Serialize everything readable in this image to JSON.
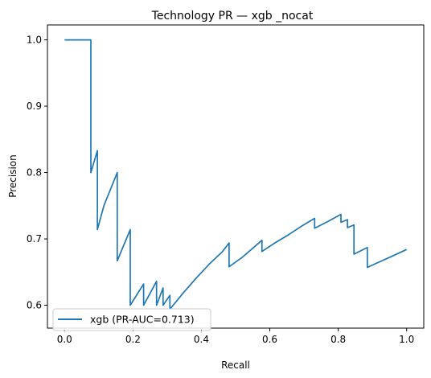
{
  "chart_data": {
    "type": "line",
    "title": "Technology PR — xgb _nocat",
    "xlabel": "Recall",
    "ylabel": "Precision",
    "xlim": [
      -0.05,
      1.05
    ],
    "ylim": [
      0.5655,
      1.0225
    ],
    "xticks": [
      0.0,
      0.2,
      0.4,
      0.6,
      0.8,
      1.0
    ],
    "xtick_labels": [
      "0.0",
      "0.2",
      "0.4",
      "0.6",
      "0.8",
      "1.0"
    ],
    "yticks": [
      0.6,
      0.7,
      0.8,
      0.9,
      1.0
    ],
    "ytick_labels": [
      "0.6",
      "0.7",
      "0.8",
      "0.9",
      "1.0"
    ],
    "grid": false,
    "legend_position": "lower-left",
    "series": [
      {
        "name": "xgb (PR-AUC=0.713)",
        "color": "#1f77b4",
        "x": [
          0.0,
          0.077,
          0.077,
          0.077,
          0.096,
          0.096,
          0.115,
          0.154,
          0.154,
          0.192,
          0.192,
          0.231,
          0.231,
          0.269,
          0.269,
          0.288,
          0.288,
          0.308,
          0.308,
          0.308,
          0.346,
          0.385,
          0.423,
          0.462,
          0.481,
          0.481,
          0.519,
          0.577,
          0.577,
          0.615,
          0.654,
          0.692,
          0.731,
          0.731,
          0.769,
          0.808,
          0.808,
          0.827,
          0.827,
          0.846,
          0.846,
          0.885,
          0.885,
          0.923,
          0.962,
          1.0
        ],
        "y": [
          1.0,
          1.0,
          0.8,
          0.8,
          0.833,
          0.714,
          0.75,
          0.8,
          0.667,
          0.714,
          0.6,
          0.632,
          0.6,
          0.636,
          0.6,
          0.626,
          0.6,
          0.615,
          0.597,
          0.594,
          0.618,
          0.641,
          0.662,
          0.681,
          0.694,
          0.658,
          0.672,
          0.698,
          0.681,
          0.694,
          0.706,
          0.719,
          0.731,
          0.716,
          0.726,
          0.737,
          0.725,
          0.729,
          0.717,
          0.721,
          0.677,
          0.687,
          0.657,
          0.666,
          0.675,
          0.684
        ]
      }
    ]
  }
}
